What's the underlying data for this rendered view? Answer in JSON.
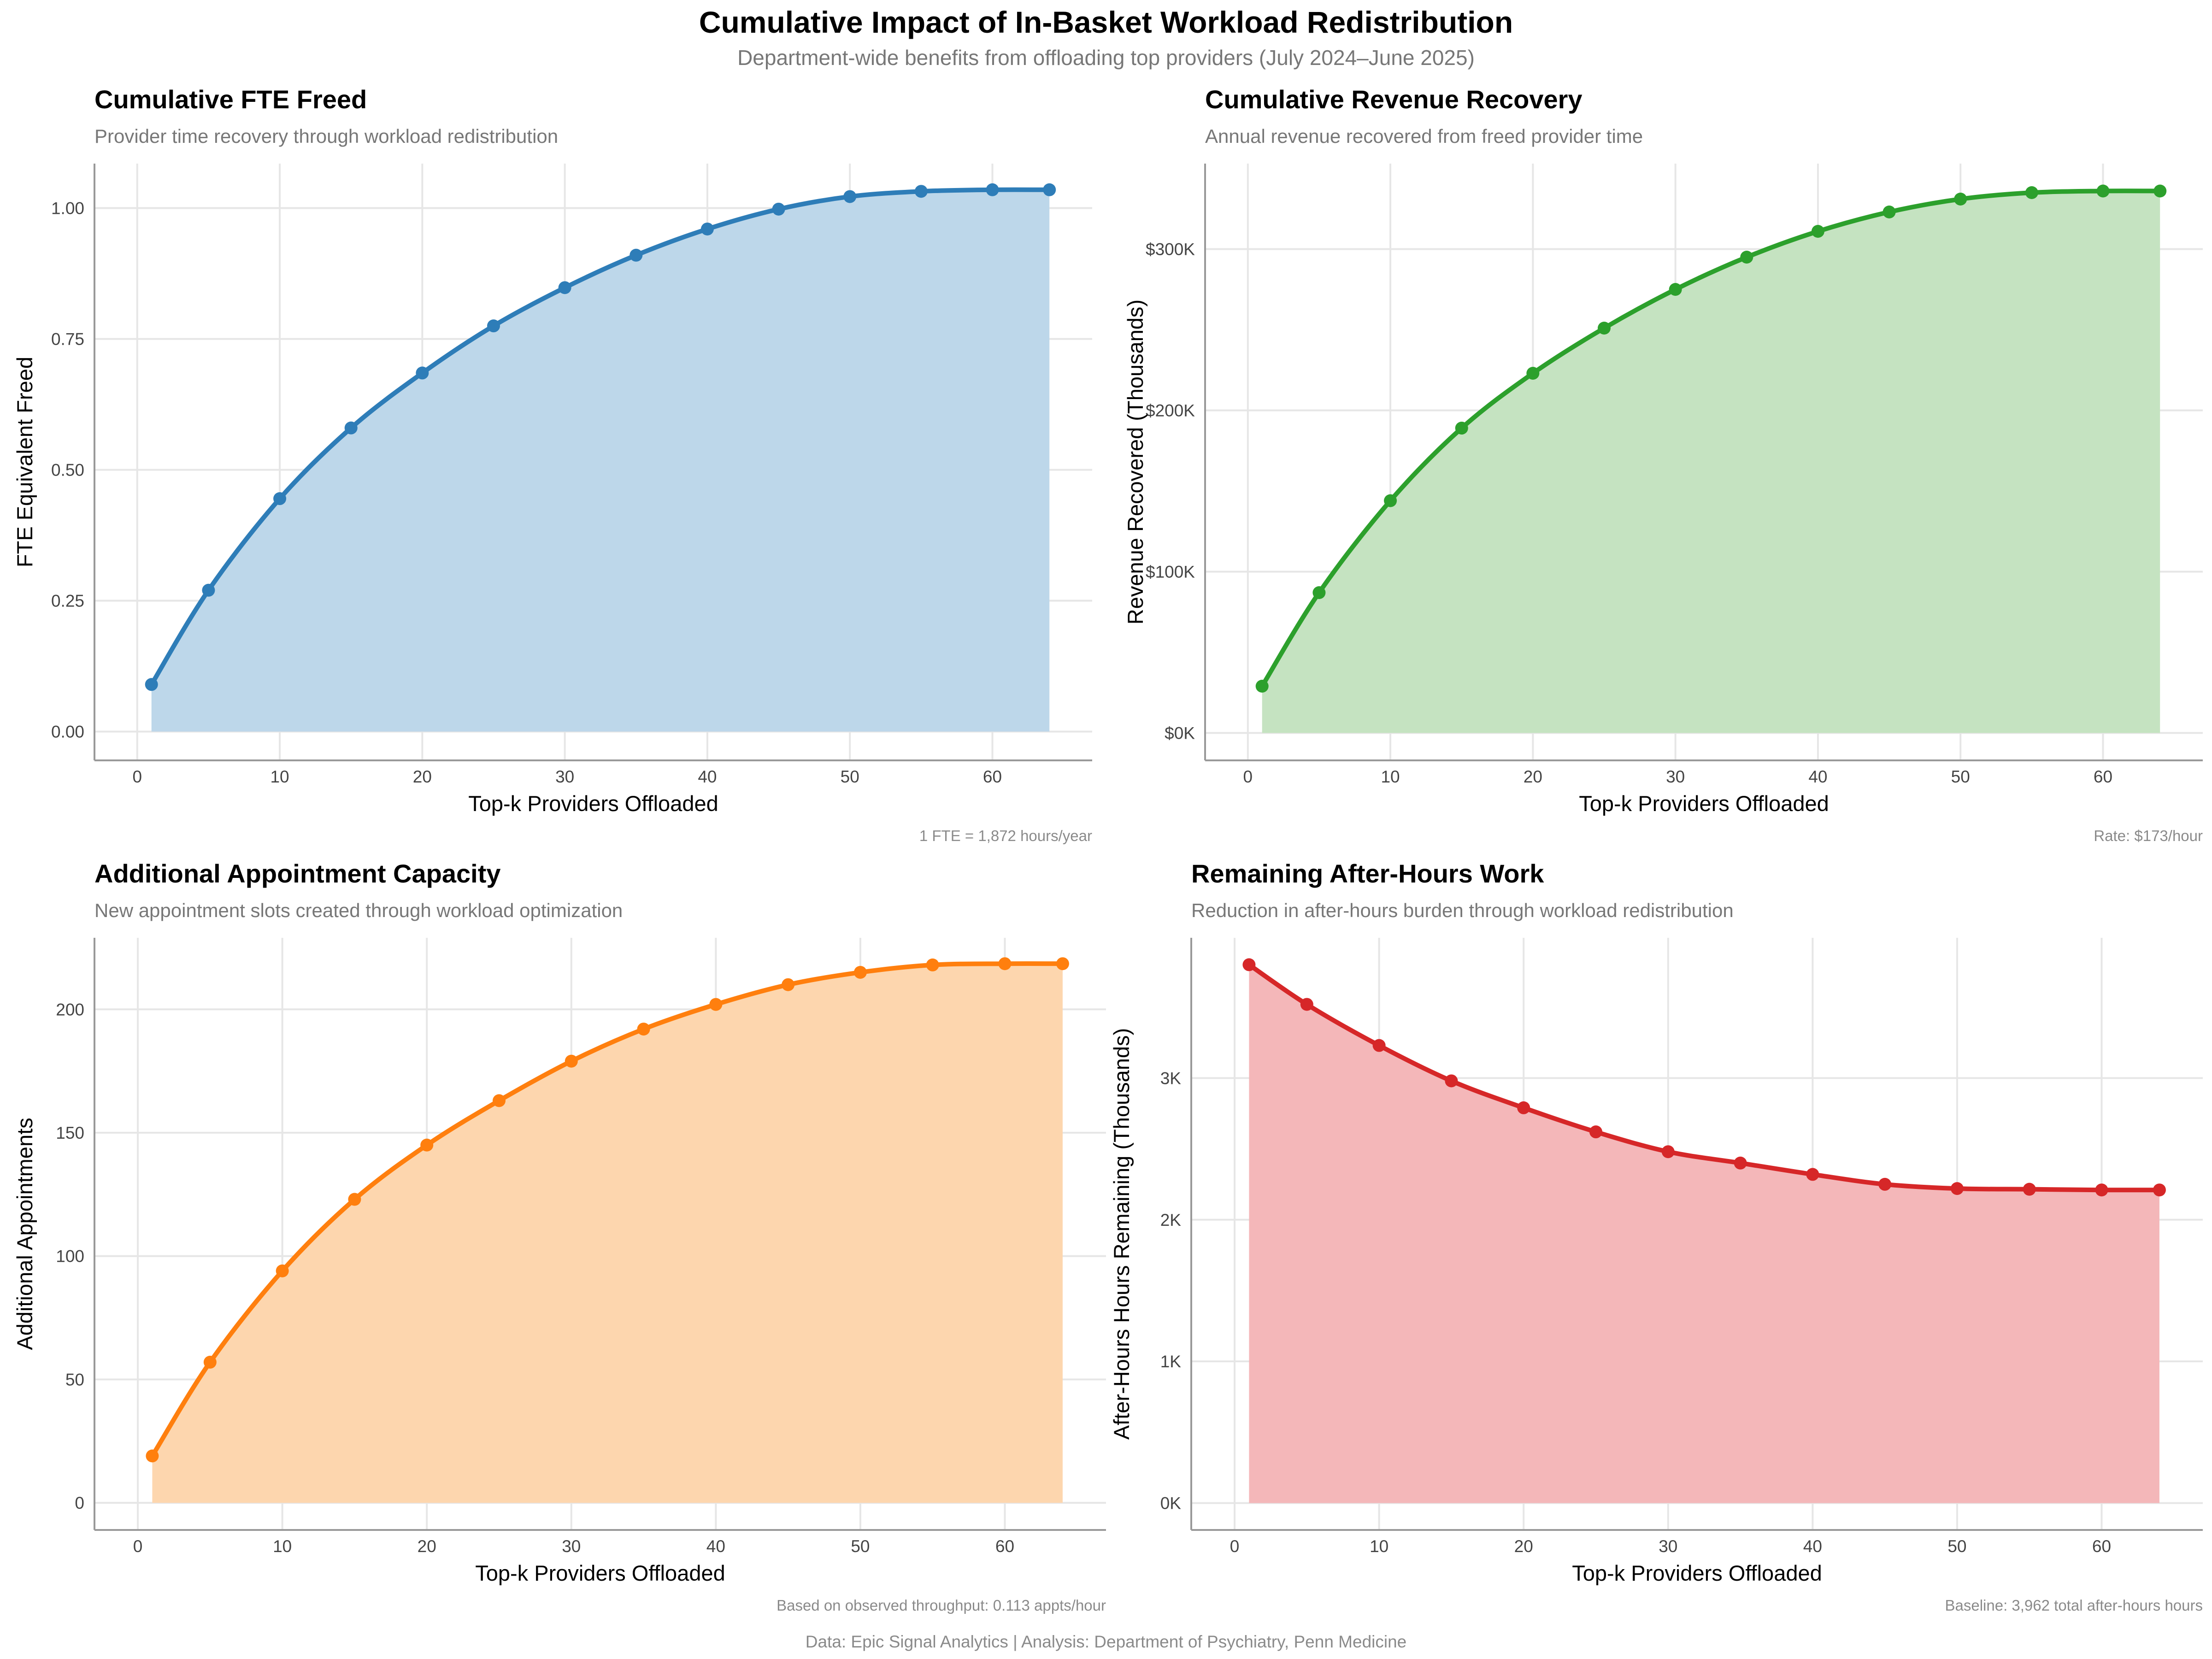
{
  "title": "Cumulative Impact of In-Basket Workload Redistribution",
  "subtitle": "Department-wide benefits from offloading top providers (July 2024–June 2025)",
  "footer": "Data: Epic Signal Analytics | Analysis: Department of Psychiatry, Penn Medicine",
  "chart_data": [
    {
      "type": "area",
      "title": "Cumulative FTE Freed",
      "subtitle": "Provider time recovery through workload redistribution",
      "xlabel": "Top-k Providers Offloaded",
      "ylabel": "FTE Equivalent Freed",
      "note": "1 FTE = 1,872 hours/year",
      "color": "#2e7db8",
      "fill": "#bdd7ea",
      "xlim": [
        -3,
        67
      ],
      "ylim": [
        -0.055,
        1.085
      ],
      "xticks": [
        0,
        10,
        20,
        30,
        40,
        50,
        60
      ],
      "xtick_labels": [
        "0",
        "10",
        "20",
        "30",
        "40",
        "50",
        "60"
      ],
      "yticks": [
        0,
        0.25,
        0.5,
        0.75,
        1.0
      ],
      "ytick_labels": [
        "0.00",
        "0.25",
        "0.50",
        "0.75",
        "1.00"
      ],
      "x": [
        1,
        5,
        10,
        15,
        20,
        25,
        30,
        35,
        40,
        45,
        50,
        55,
        60,
        64
      ],
      "y": [
        0.09,
        0.27,
        0.445,
        0.58,
        0.685,
        0.775,
        0.848,
        0.91,
        0.96,
        0.998,
        1.022,
        1.032,
        1.035,
        1.035
      ],
      "x_end": 64,
      "grid": true
    },
    {
      "type": "area",
      "title": "Cumulative Revenue Recovery",
      "subtitle": "Annual revenue recovered from freed provider time",
      "xlabel": "Top-k Providers Offloaded",
      "ylabel": "Revenue Recovered (Thousands)",
      "note": "Rate: $173/hour",
      "color": "#2ca02c",
      "fill": "#c5e3c1",
      "xlim": [
        -3,
        67
      ],
      "ylim": [
        -17000,
        353000
      ],
      "xticks": [
        0,
        10,
        20,
        30,
        40,
        50,
        60
      ],
      "xtick_labels": [
        "0",
        "10",
        "20",
        "30",
        "40",
        "50",
        "60"
      ],
      "yticks": [
        0,
        100000,
        200000,
        300000
      ],
      "ytick_labels": [
        "$0K",
        "$100K",
        "$200K",
        "$300K"
      ],
      "x": [
        1,
        5,
        10,
        15,
        20,
        25,
        30,
        35,
        40,
        45,
        50,
        55,
        60,
        64
      ],
      "y": [
        29000,
        87000,
        144000,
        189000,
        223000,
        251000,
        275000,
        295000,
        311000,
        323000,
        331000,
        335000,
        336000,
        336000
      ],
      "x_end": 64,
      "grid": true
    },
    {
      "type": "area",
      "title": "Additional Appointment Capacity",
      "subtitle": "New appointment slots created through workload optimization",
      "xlabel": "Top-k Providers Offloaded",
      "ylabel": "Additional Appointments",
      "note": "Based on observed throughput: 0.113 appts/hour",
      "color": "#ff7f0e",
      "fill": "#fdd6ae",
      "xlim": [
        -3,
        67
      ],
      "ylim": [
        -11,
        229
      ],
      "xticks": [
        0,
        10,
        20,
        30,
        40,
        50,
        60
      ],
      "xtick_labels": [
        "0",
        "10",
        "20",
        "30",
        "40",
        "50",
        "60"
      ],
      "yticks": [
        0,
        50,
        100,
        150,
        200
      ],
      "ytick_labels": [
        "0",
        "50",
        "100",
        "150",
        "200"
      ],
      "x": [
        1,
        5,
        10,
        15,
        20,
        25,
        30,
        35,
        40,
        45,
        50,
        55,
        60,
        64
      ],
      "y": [
        19,
        57,
        94,
        123,
        145,
        163,
        179,
        192,
        202,
        210,
        215,
        218,
        218.5,
        218.5
      ],
      "x_end": 64,
      "grid": true
    },
    {
      "type": "area",
      "title": "Remaining After-Hours Work",
      "subtitle": "Reduction in after-hours burden through workload redistribution",
      "xlabel": "Top-k Providers Offloaded",
      "ylabel": "After-Hours Hours Remaining (Thousands)",
      "note": "Baseline: 3,962 total after-hours hours",
      "color": "#d62728",
      "fill": "#f4b7b9",
      "xlim": [
        -3,
        67
      ],
      "ylim": [
        -190,
        3990
      ],
      "xticks": [
        0,
        10,
        20,
        30,
        40,
        50,
        60
      ],
      "xtick_labels": [
        "0",
        "10",
        "20",
        "30",
        "40",
        "50",
        "60"
      ],
      "yticks": [
        0,
        1000,
        2000,
        3000
      ],
      "ytick_labels": [
        "0K",
        "1K",
        "2K",
        "3K"
      ],
      "x": [
        1,
        5,
        10,
        15,
        20,
        25,
        30,
        35,
        40,
        45,
        50,
        55,
        60,
        64
      ],
      "y": [
        3800,
        3520,
        3230,
        2980,
        2790,
        2620,
        2480,
        2400,
        2320,
        2250,
        2220,
        2215,
        2210,
        2210
      ],
      "x_end": 64,
      "grid": true
    }
  ]
}
